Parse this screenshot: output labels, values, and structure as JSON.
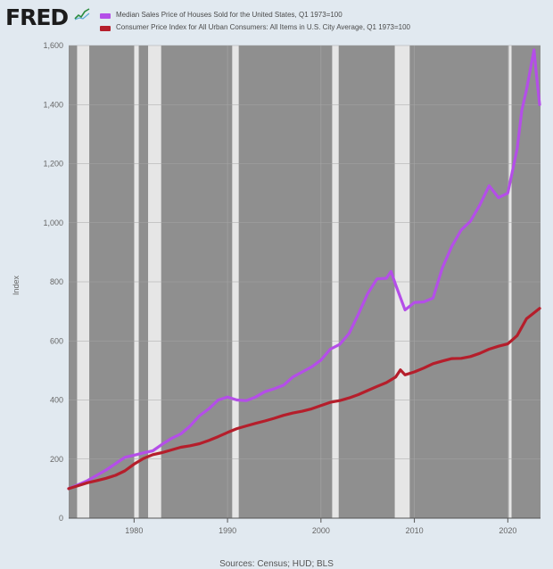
{
  "header": {
    "logo_text": "FRED"
  },
  "colors": {
    "background": "#e1e9f0",
    "plot_area": "#8f8f8f",
    "recession": "#e6e6e6",
    "gridline": "#a6a6a6",
    "house_price": "#b44ee8",
    "cpi": "#b51e2b"
  },
  "source": "Sources: Census; HUD; BLS",
  "chart_data": {
    "type": "line",
    "title": "",
    "xlabel": "",
    "ylabel": "Index",
    "xlim": [
      1973.0,
      2023.5
    ],
    "ylim": [
      0,
      1600
    ],
    "x_ticks": [
      1980,
      1990,
      2000,
      2010,
      2020
    ],
    "x_tick_labels": [
      "1980",
      "1990",
      "2000",
      "2010",
      "2020"
    ],
    "y_ticks": [
      0,
      200,
      400,
      600,
      800,
      1000,
      1200,
      1400,
      1600
    ],
    "y_tick_labels": [
      "0",
      "200",
      "400",
      "600",
      "800",
      "1,000",
      "1,200",
      "1,400",
      "1,600"
    ],
    "grid": true,
    "legend_placement": "top-left, above plot",
    "recessions": [
      [
        1973.9,
        1975.2
      ],
      [
        1980.0,
        1980.5
      ],
      [
        1981.5,
        1982.9
      ],
      [
        1990.5,
        1991.2
      ],
      [
        2001.2,
        2001.9
      ],
      [
        2007.9,
        2009.5
      ],
      [
        2020.1,
        2020.4
      ]
    ],
    "series": [
      {
        "name": "Median Sales Price of Houses Sold for the United States, Q1 1973=100",
        "color": "#b44ee8",
        "x": [
          1973,
          1974,
          1975,
          1976,
          1977,
          1978,
          1979,
          1980,
          1981,
          1982,
          1983,
          1984,
          1985,
          1986,
          1987,
          1988,
          1989,
          1990,
          1991,
          1992,
          1993,
          1994,
          1995,
          1996,
          1997,
          1998,
          1999,
          2000,
          2001,
          2002,
          2003,
          2004,
          2005,
          2006,
          2007,
          2007.5,
          2008,
          2009,
          2010,
          2011,
          2012,
          2013,
          2014,
          2015,
          2016,
          2017,
          2018,
          2019,
          2020,
          2021,
          2021.5,
          2022,
          2022.8,
          2023,
          2023.4
        ],
        "y": [
          100,
          113,
          127,
          145,
          163,
          184,
          206,
          213,
          221,
          228,
          250,
          270,
          285,
          312,
          347,
          370,
          400,
          410,
          400,
          398,
          410,
          428,
          438,
          450,
          478,
          495,
          512,
          535,
          572,
          588,
          625,
          690,
          760,
          810,
          812,
          835,
          790,
          705,
          730,
          732,
          745,
          848,
          920,
          975,
          1005,
          1060,
          1125,
          1085,
          1100,
          1250,
          1380,
          1450,
          1585,
          1520,
          1400
        ]
      },
      {
        "name": "Consumer Price Index for All Urban Consumers: All Items in U.S. City Average, Q1 1973=100",
        "color": "#b51e2b",
        "x": [
          1973,
          1974,
          1975,
          1976,
          1977,
          1978,
          1979,
          1980,
          1981,
          1982,
          1983,
          1984,
          1985,
          1986,
          1987,
          1988,
          1989,
          1990,
          1991,
          1992,
          1993,
          1994,
          1995,
          1996,
          1997,
          1998,
          1999,
          2000,
          2001,
          2002,
          2003,
          2004,
          2005,
          2006,
          2007,
          2008,
          2008.5,
          2009,
          2010,
          2011,
          2012,
          2013,
          2014,
          2015,
          2016,
          2017,
          2018,
          2019,
          2020,
          2021,
          2022,
          2023,
          2023.4
        ],
        "y": [
          100,
          110,
          120,
          127,
          135,
          145,
          160,
          183,
          202,
          215,
          222,
          231,
          240,
          245,
          252,
          263,
          276,
          290,
          303,
          312,
          321,
          329,
          338,
          348,
          356,
          362,
          370,
          381,
          392,
          398,
          407,
          418,
          432,
          446,
          459,
          478,
          502,
          485,
          495,
          508,
          523,
          532,
          540,
          541,
          547,
          558,
          572,
          582,
          590,
          618,
          675,
          700,
          710
        ]
      }
    ]
  }
}
